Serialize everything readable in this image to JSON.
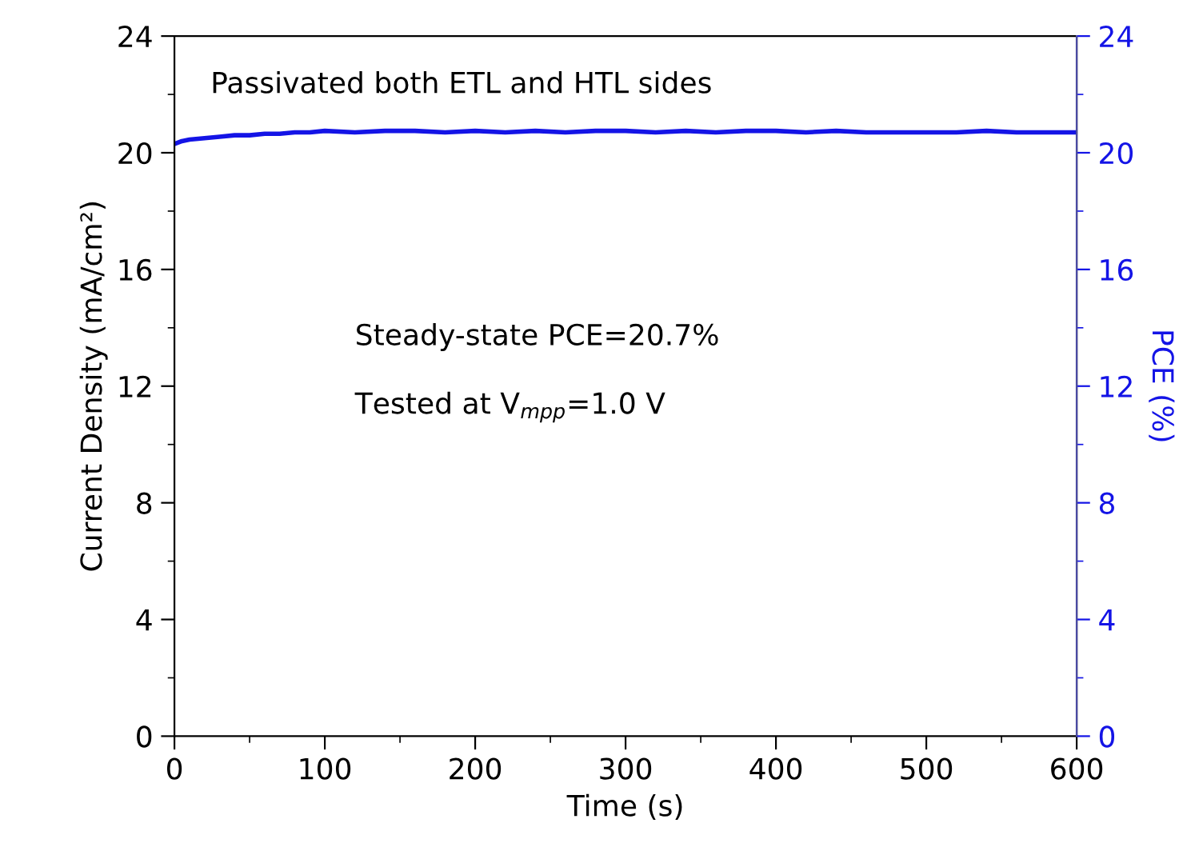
{
  "chart_data": {
    "type": "line",
    "xlabel": "Time (s)",
    "ylabel": "Current Density (mA/cm²)",
    "y2label": "PCE (%)",
    "x": [
      0,
      5,
      10,
      20,
      30,
      40,
      50,
      60,
      70,
      80,
      90,
      100,
      120,
      140,
      160,
      180,
      200,
      220,
      240,
      260,
      280,
      300,
      320,
      340,
      360,
      380,
      400,
      420,
      440,
      460,
      480,
      500,
      520,
      540,
      560,
      580,
      600
    ],
    "series": [
      {
        "color": "#1414e6",
        "values": [
          20.3,
          20.4,
          20.45,
          20.5,
          20.55,
          20.6,
          20.6,
          20.65,
          20.65,
          20.7,
          20.7,
          20.75,
          20.7,
          20.75,
          20.75,
          20.7,
          20.75,
          20.7,
          20.75,
          20.7,
          20.75,
          20.75,
          20.7,
          20.75,
          20.7,
          20.75,
          20.75,
          20.7,
          20.75,
          20.7,
          20.7,
          20.7,
          20.7,
          20.75,
          20.7,
          20.7,
          20.7
        ]
      }
    ],
    "xlim": [
      0,
      600
    ],
    "xticks": [
      0,
      100,
      200,
      300,
      400,
      500,
      600
    ],
    "ylim": [
      0,
      24
    ],
    "yticks": [
      0,
      4,
      8,
      12,
      16,
      20,
      24
    ],
    "y2lim": [
      0,
      24
    ],
    "y2ticks": [
      0,
      4,
      8,
      12,
      16,
      20,
      24
    ],
    "annotations": [
      "Passivated both ETL and HTL sides",
      "Steady-state PCE=20.7%",
      "Tested at V$_{mpp}$=1.0 V"
    ],
    "grid": false,
    "legend": false,
    "marker": "none",
    "line_style": "solid"
  }
}
